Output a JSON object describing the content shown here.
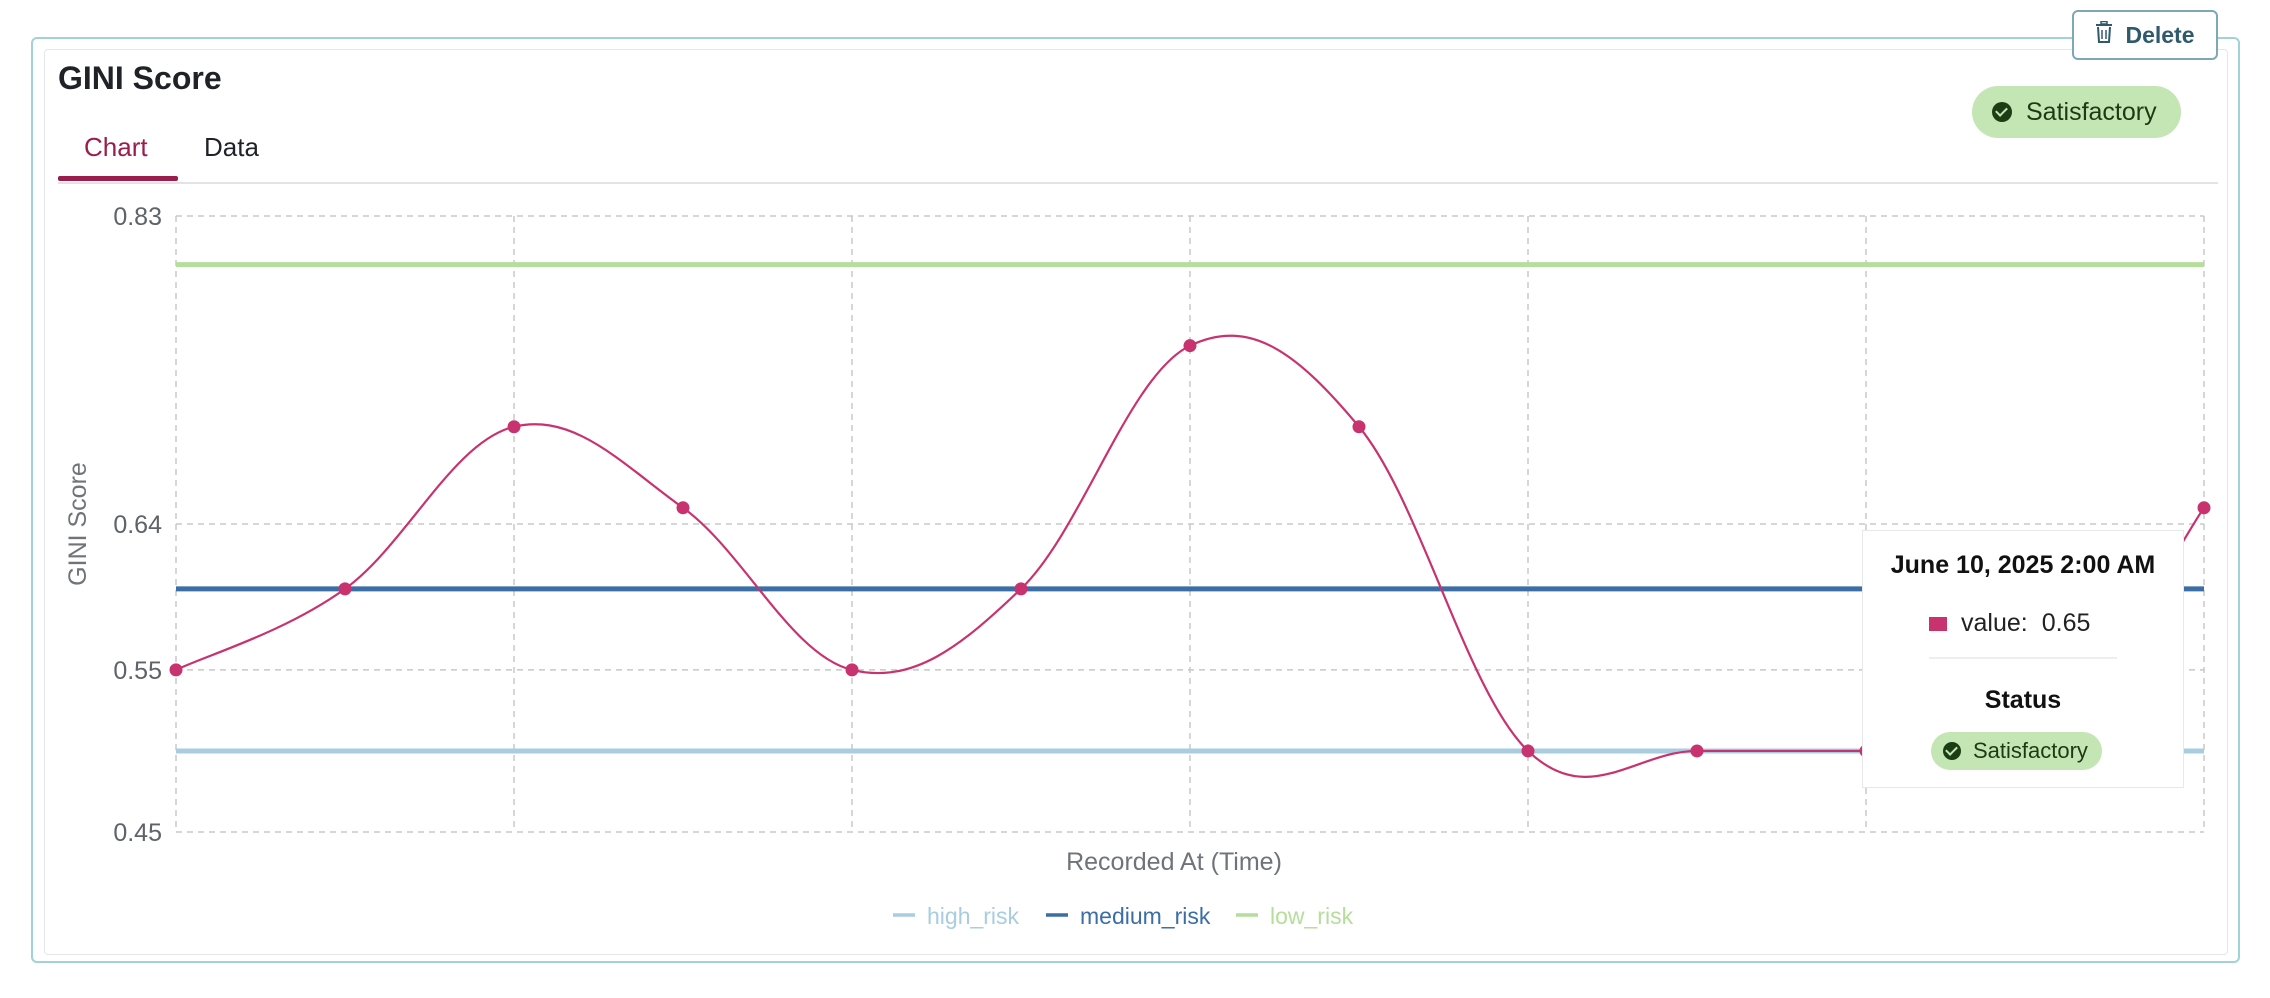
{
  "card": {
    "title": "GINI Score",
    "delete_label": "Delete",
    "status": "Satisfactory"
  },
  "tabs": [
    {
      "label": "Chart",
      "active": true
    },
    {
      "label": "Data",
      "active": false
    }
  ],
  "tooltip": {
    "date": "June 10, 2025 2:00 AM",
    "value_label": "value:",
    "value": "0.65",
    "status_label": "Status",
    "status": "Satisfactory"
  },
  "colors": {
    "accent": "#9a1d4c",
    "line": "#c8326f",
    "high_risk": "#a8cce0",
    "medium_risk": "#3a6ea5",
    "low_risk": "#b5dd9b",
    "grid": "#c8c8c8"
  },
  "chart_data": {
    "type": "line",
    "ylabel": "GINI Score",
    "xlabel": "Recorded At (Time)",
    "ylim": [
      0.45,
      0.83
    ],
    "yticks": [
      "0.83",
      "0.64",
      "0.55",
      "0.45"
    ],
    "grid": true,
    "legend_position": "bottom",
    "series": [
      {
        "name": "value",
        "values": [
          0.55,
          0.6,
          0.7,
          0.65,
          0.55,
          0.6,
          0.75,
          0.7,
          0.5,
          0.5,
          0.5,
          0.5,
          0.65
        ]
      }
    ],
    "thresholds": [
      {
        "name": "high_risk",
        "value": 0.5
      },
      {
        "name": "medium_risk",
        "value": 0.6
      },
      {
        "name": "low_risk",
        "value": 0.8
      }
    ]
  }
}
